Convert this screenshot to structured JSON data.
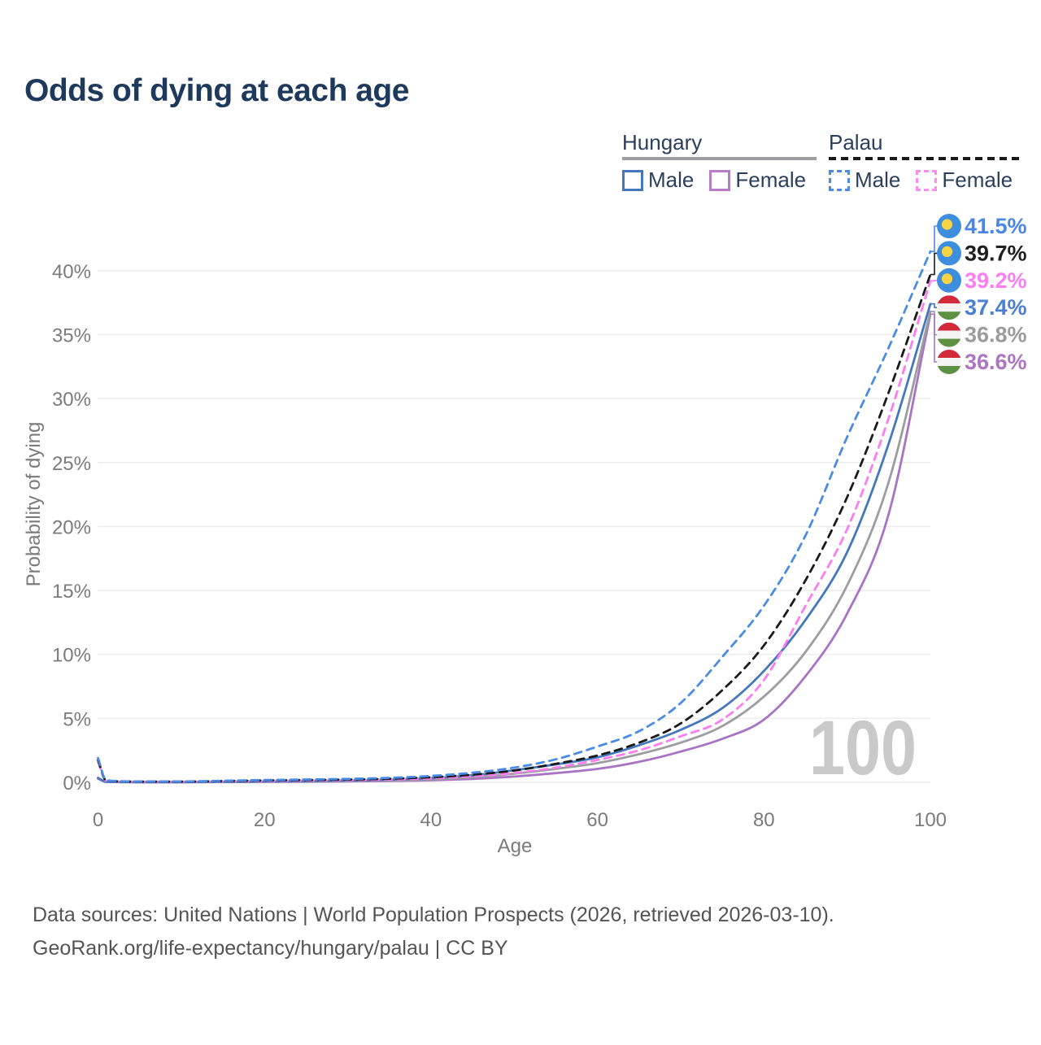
{
  "title": "Odds of dying at each age",
  "legend": {
    "groups": [
      {
        "label": "Hungary",
        "line_style": "solid",
        "underline_color": "#9c9ca1",
        "items": [
          {
            "label": "Male",
            "color": "#4577bd",
            "style": "solid"
          },
          {
            "label": "Female",
            "color": "#b77cc7",
            "style": "solid"
          }
        ]
      },
      {
        "label": "Palau",
        "line_style": "dashed",
        "underline_color": "#1a1a1a",
        "items": [
          {
            "label": "Male",
            "color": "#4a8be4",
            "style": "dashed"
          },
          {
            "label": "Female",
            "color": "#fb8df2",
            "style": "dashed"
          }
        ]
      }
    ]
  },
  "chart_data": {
    "type": "line",
    "title": "Odds of dying at each age",
    "xlabel": "Age",
    "ylabel": "Probability of dying",
    "xlim": [
      0,
      100
    ],
    "ylim_percent": [
      0,
      43
    ],
    "grid": "horizontal-only",
    "x_ticks": [
      0,
      20,
      40,
      60,
      80,
      100
    ],
    "y_ticks": [
      {
        "label": "0%",
        "value": 0
      },
      {
        "label": "5%",
        "value": 5
      },
      {
        "label": "10%",
        "value": 10
      },
      {
        "label": "15%",
        "value": 15
      },
      {
        "label": "20%",
        "value": 20
      },
      {
        "label": "25%",
        "value": 25
      },
      {
        "label": "30%",
        "value": 30
      },
      {
        "label": "35%",
        "value": 35
      },
      {
        "label": "40%",
        "value": 40
      }
    ],
    "ages": [
      0,
      1,
      5,
      10,
      15,
      20,
      25,
      30,
      35,
      40,
      45,
      50,
      55,
      60,
      65,
      70,
      75,
      80,
      85,
      90,
      95,
      100
    ],
    "series": [
      {
        "name": "Palau Male",
        "country": "Palau",
        "sex": "male",
        "style": "dashed",
        "color": "#4a8be4",
        "label_color": "#4a86e8",
        "flag": "palau",
        "end_label": "41.5%",
        "values": [
          1.9,
          0.15,
          0.07,
          0.07,
          0.12,
          0.18,
          0.22,
          0.27,
          0.35,
          0.5,
          0.75,
          1.15,
          1.8,
          2.8,
          4.0,
          6.2,
          9.8,
          13.8,
          19.3,
          27.0,
          34.0,
          41.5
        ]
      },
      {
        "name": "Palau Total",
        "country": "Palau",
        "sex": "both",
        "style": "dashed",
        "color": "#1a1a1a",
        "label_color": "#1f1f1f",
        "flag": "palau",
        "end_label": "39.7%",
        "values": [
          1.75,
          0.13,
          0.06,
          0.06,
          0.1,
          0.15,
          0.18,
          0.22,
          0.28,
          0.4,
          0.6,
          0.92,
          1.45,
          2.1,
          3.1,
          4.6,
          7.2,
          10.7,
          15.8,
          22.3,
          30.5,
          39.7
        ]
      },
      {
        "name": "Palau Female",
        "country": "Palau",
        "sex": "female",
        "style": "dashed",
        "color": "#fb7df0",
        "label_color": "#ff7df2",
        "flag": "palau",
        "end_label": "39.2%",
        "values": [
          1.6,
          0.11,
          0.05,
          0.05,
          0.08,
          0.11,
          0.14,
          0.17,
          0.22,
          0.31,
          0.47,
          0.73,
          1.15,
          1.75,
          2.5,
          3.6,
          4.9,
          8.0,
          13.8,
          19.8,
          28.5,
          39.2
        ]
      },
      {
        "name": "Hungary Male",
        "country": "Hungary",
        "sex": "male",
        "style": "solid",
        "color": "#4577bd",
        "label_color": "#4a7fd1",
        "flag": "hungary",
        "end_label": "37.4%",
        "values": [
          0.35,
          0.04,
          0.02,
          0.02,
          0.04,
          0.07,
          0.1,
          0.14,
          0.21,
          0.33,
          0.55,
          0.95,
          1.4,
          1.95,
          2.9,
          4.1,
          5.8,
          8.7,
          12.7,
          18.0,
          26.5,
          37.4
        ]
      },
      {
        "name": "Hungary Total",
        "country": "Hungary",
        "sex": "both",
        "style": "solid",
        "color": "#9c9ca1",
        "label_color": "#9b9b9b",
        "flag": "hungary",
        "end_label": "36.8%",
        "values": [
          0.32,
          0.03,
          0.015,
          0.015,
          0.03,
          0.05,
          0.07,
          0.1,
          0.15,
          0.24,
          0.4,
          0.68,
          1.05,
          1.5,
          2.2,
          3.1,
          4.4,
          6.7,
          10.2,
          15.4,
          23.5,
          36.8
        ]
      },
      {
        "name": "Hungary Female",
        "country": "Hungary",
        "sex": "female",
        "style": "solid",
        "color": "#a873c2",
        "label_color": "#ad74c2",
        "flag": "hungary",
        "end_label": "36.6%",
        "values": [
          0.28,
          0.03,
          0.012,
          0.012,
          0.02,
          0.03,
          0.045,
          0.07,
          0.1,
          0.16,
          0.27,
          0.45,
          0.72,
          1.05,
          1.6,
          2.4,
          3.4,
          4.9,
          8.3,
          13.2,
          21.0,
          36.6
        ]
      }
    ],
    "watermark": "100",
    "legend_position": "top-right"
  },
  "flags": {
    "palau": {
      "bg": "#3e8ee0",
      "disc": "#f7d346"
    },
    "hungary": {
      "top": "#d2293b",
      "mid": "#f3f3f3",
      "bottom": "#5d9143"
    }
  },
  "colors": {
    "title": "#1d3a5c",
    "axis_text": "#7b7b7b",
    "grid": "#ededed",
    "watermark": "#c9c9c9",
    "footer_text": "#545454"
  },
  "footer": {
    "line1": "Data sources: United Nations | World Population Prospects (2026, retrieved 2026-03-10).",
    "line2": "GeoRank.org/life-expectancy/hungary/palau | CC BY"
  }
}
